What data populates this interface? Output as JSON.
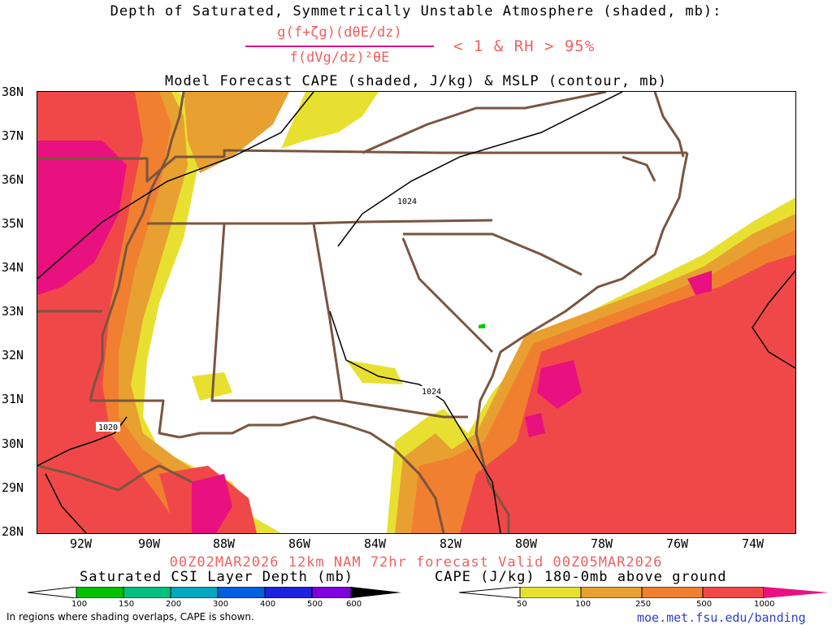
{
  "header": {
    "title_line1": "Depth of Saturated, Symmetrically Unstable Atmosphere (shaded, mb):",
    "fraction_numerator": "g(f+ζg)(dθE/dz)",
    "fraction_denominator": "f(dVg/dz)²θE",
    "criterion": "< 1 & RH > 95%",
    "title_line3": "Model Forecast CAPE (shaded, J/kg) & MSLP (contour, mb)"
  },
  "map": {
    "lat_labels": [
      "38N",
      "37N",
      "36N",
      "35N",
      "34N",
      "33N",
      "32N",
      "31N",
      "30N",
      "29N",
      "28N"
    ],
    "lon_labels": [
      "92W",
      "90W",
      "88W",
      "86W",
      "84W",
      "82W",
      "80W",
      "78W",
      "76W",
      "74W"
    ],
    "isobar_labels": [
      "1024",
      "1024",
      "1020"
    ],
    "colors": {
      "cape_50": "#e8e030",
      "cape_100": "#e8a030",
      "cape_250": "#f08030",
      "cape_500": "#f04848",
      "cape_1000": "#e8117f",
      "borders": "#7a5540",
      "isobars": "#000000",
      "csi": "#00cc00"
    }
  },
  "footer": {
    "run_info": "00Z02MAR2026 12km NAM 72hr forecast Valid 00Z05MAR2026",
    "csi_title": "Saturated CSI Layer Depth (mb)",
    "cape_title": "CAPE (J/kg) 180-0mb above ground",
    "csi_ticks": [
      "100",
      "150",
      "200",
      "300",
      "400",
      "500",
      "600"
    ],
    "cape_ticks": [
      "50",
      "100",
      "250",
      "500",
      "1000"
    ],
    "csi_colors": [
      "#00c000",
      "#00c080",
      "#00a8c0",
      "#0060e0",
      "#2020e0",
      "#8000e0",
      "#000000"
    ],
    "cape_colors": [
      "#ffffff",
      "#e8e030",
      "#e8a030",
      "#f08030",
      "#f04848",
      "#e8117f"
    ],
    "note": "In regions where shading overlaps, CAPE is shown.",
    "url": "moe.met.fsu.edu/banding"
  }
}
